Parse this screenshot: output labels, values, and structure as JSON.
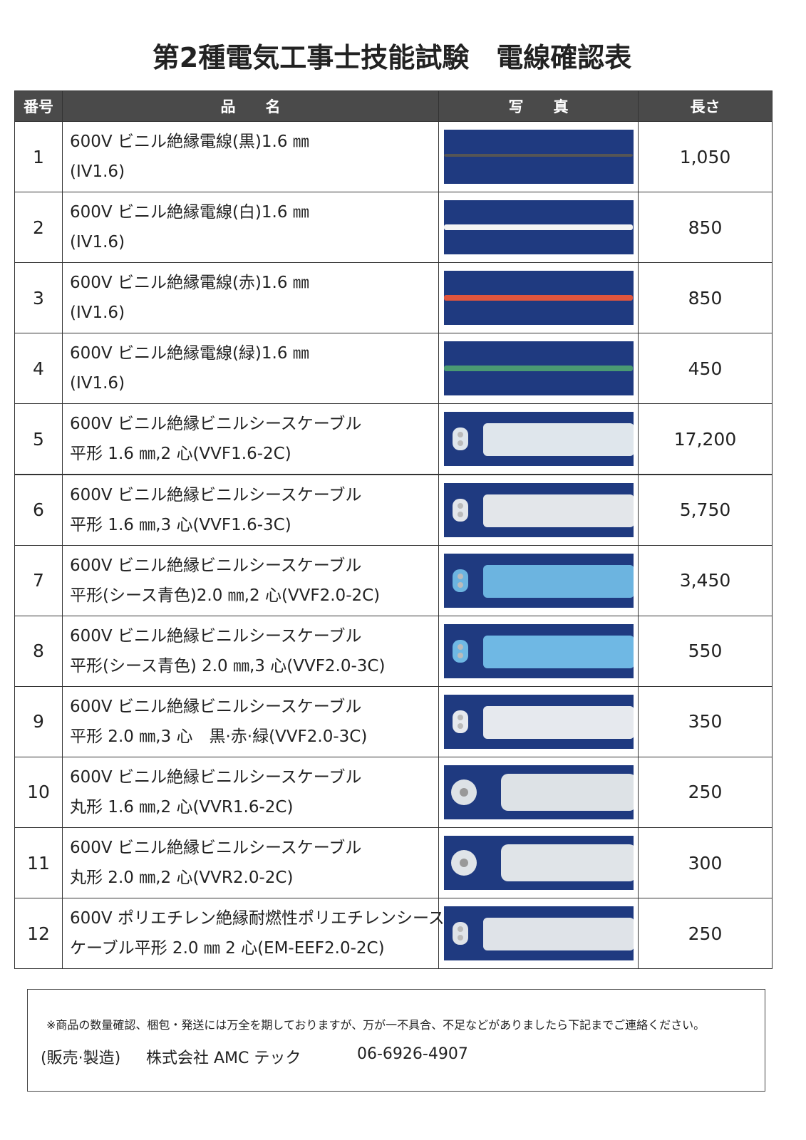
{
  "header": {
    "title": "第2種電気工事士技能試験　電線確認表"
  },
  "table": {
    "columns": [
      "番号",
      "品　　名",
      "写　　真",
      "長さ"
    ],
    "rows": [
      {
        "no": "1",
        "name": [
          "600V ビニル絶縁電線(黒)1.6 ㎜",
          "(IV1.6)"
        ],
        "length": "1,050"
      },
      {
        "no": "2",
        "name": [
          "600V ビニル絶縁電線(白)1.6 ㎜",
          "(IV1.6)"
        ],
        "length": "850"
      },
      {
        "no": "3",
        "name": [
          "600V ビニル絶縁電線(赤)1.6 ㎜",
          "(IV1.6)"
        ],
        "length": "850"
      },
      {
        "no": "4",
        "name": [
          "600V ビニル絶縁電線(緑)1.6 ㎜",
          "(IV1.6)"
        ],
        "length": "450"
      },
      {
        "no": "5",
        "name": [
          "600V ビニル絶縁ビニルシースケーブル",
          "平形 1.6 ㎜,2 心(VVF1.6-2C)"
        ],
        "length": "17,200"
      },
      {
        "no": "6",
        "name": [
          "600V ビニル絶縁ビニルシースケーブル",
          "平形 1.6 ㎜,3 心(VVF1.6-3C)"
        ],
        "length": "5,750"
      },
      {
        "no": "7",
        "name": [
          "600V ビニル絶縁ビニルシースケーブル",
          "平形(シース青色)2.0 ㎜,2 心(VVF2.0-2C)"
        ],
        "length": "3,450"
      },
      {
        "no": "8",
        "name": [
          "600V ビニル絶縁ビニルシースケーブル",
          "平形(シース青色) 2.0 ㎜,3 心(VVF2.0-3C)"
        ],
        "length": "550"
      },
      {
        "no": "9",
        "name": [
          "600V ビニル絶縁ビニルシースケーブル",
          "平形 2.0 ㎜,3 心　黒·赤·緑(VVF2.0-3C)"
        ],
        "length": "350"
      },
      {
        "no": "10",
        "name": [
          "600V ビニル絶縁ビニルシースケーブル",
          "丸形 1.6 ㎜,2 心(VVR1.6-2C)"
        ],
        "length": "250"
      },
      {
        "no": "11",
        "name": [
          "600V ビニル絶縁ビニルシースケーブル",
          "丸形 2.0 ㎜,2 心(VVR2.0-2C)"
        ],
        "length": "300"
      },
      {
        "no": "12",
        "name": [
          "600V ポリエチレン絶縁耐燃性ポリエチレンシース",
          "ケーブル平形 2.0 ㎜ 2 心(EM-EEF2.0-2C)"
        ],
        "length": "250"
      }
    ]
  },
  "footer": {
    "note": "※商品の数量確認、梱包・発送には万全を期しておりますが、万が一不具合、不足などがありましたら下記までご連絡ください。",
    "role": "(販売·製造)",
    "company": "株式会社 AMC テック",
    "phone": "06-6926-4907"
  }
}
